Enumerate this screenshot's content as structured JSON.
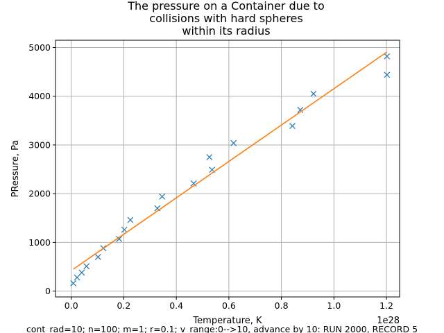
{
  "chart_data": {
    "type": "scatter",
    "title_lines": [
      "The pressure on a Container due to",
      "collisions with hard spheres",
      "within its radius"
    ],
    "xlabel": "Temperature, K",
    "ylabel": "PRessure, Pa",
    "x_offset_label": "1e28",
    "footer": "cont_rad=10; n=100; m=1; r=0.1; v_range:0-->10, advance by 10:    RUN 2000, RECORD 5",
    "xlim": [
      -0.06,
      1.25
    ],
    "ylim": [
      -120,
      5150
    ],
    "grid": true,
    "x_ticks": [
      0.0,
      0.2,
      0.4,
      0.6,
      0.8,
      1.0,
      1.2
    ],
    "x_tick_labels": [
      "0.0",
      "0.2",
      "0.4",
      "0.6",
      "0.8",
      "1.0",
      "1.2"
    ],
    "y_ticks": [
      0,
      1000,
      2000,
      3000,
      4000,
      5000
    ],
    "y_tick_labels": [
      "0",
      "1000",
      "2000",
      "3000",
      "4000",
      "5000"
    ],
    "colors": {
      "points": "#1f77b4",
      "fit": "#ff7f0e",
      "grid": "#b0b0b0"
    },
    "series": [
      {
        "type": "scatter",
        "marker": "x",
        "points": [
          {
            "x": 0.008,
            "y": 160
          },
          {
            "x": 0.022,
            "y": 280
          },
          {
            "x": 0.04,
            "y": 380
          },
          {
            "x": 0.058,
            "y": 510
          },
          {
            "x": 0.102,
            "y": 700
          },
          {
            "x": 0.122,
            "y": 880
          },
          {
            "x": 0.182,
            "y": 1070
          },
          {
            "x": 0.202,
            "y": 1260
          },
          {
            "x": 0.225,
            "y": 1460
          },
          {
            "x": 0.328,
            "y": 1700
          },
          {
            "x": 0.346,
            "y": 1940
          },
          {
            "x": 0.466,
            "y": 2210
          },
          {
            "x": 0.526,
            "y": 2750
          },
          {
            "x": 0.536,
            "y": 2490
          },
          {
            "x": 0.618,
            "y": 3040
          },
          {
            "x": 0.842,
            "y": 3390
          },
          {
            "x": 0.872,
            "y": 3720
          },
          {
            "x": 0.922,
            "y": 4050
          },
          {
            "x": 1.202,
            "y": 4820
          },
          {
            "x": 1.202,
            "y": 4440
          }
        ]
      },
      {
        "type": "line",
        "points": [
          {
            "x": 0.008,
            "y": 450
          },
          {
            "x": 1.202,
            "y": 4910
          }
        ]
      }
    ]
  }
}
